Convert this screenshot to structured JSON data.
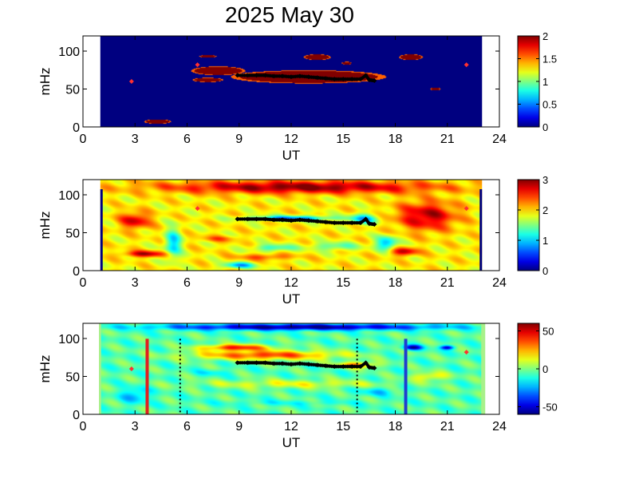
{
  "figure": {
    "title": "2025 May 30"
  },
  "chart_data": [
    {
      "type": "heatmap",
      "panel": "top",
      "xlabel": "UT",
      "ylabel": "mHz",
      "xlim": [
        0,
        24
      ],
      "ylim": [
        0,
        120
      ],
      "xticks": [
        "0",
        "3",
        "6",
        "9",
        "12",
        "15",
        "18",
        "21",
        "24"
      ],
      "yticks": [
        "0",
        "50",
        "100"
      ],
      "colorbar": {
        "range": [
          0,
          2
        ],
        "ticks": [
          "0",
          "0.5",
          "1",
          "1.5",
          "2"
        ]
      },
      "data_extent_ut": [
        1.0,
        23.0
      ],
      "background_value": 0,
      "blobs": [
        {
          "x": 13.0,
          "y": 66,
          "rx": 4.6,
          "ry": 9,
          "value": 2
        },
        {
          "x": 7.8,
          "y": 74,
          "rx": 1.6,
          "ry": 6,
          "value": 2
        },
        {
          "x": 7.2,
          "y": 62,
          "rx": 0.9,
          "ry": 3,
          "value": 2
        },
        {
          "x": 18.9,
          "y": 92,
          "rx": 0.7,
          "ry": 4,
          "value": 2
        },
        {
          "x": 13.5,
          "y": 92,
          "rx": 0.8,
          "ry": 4,
          "value": 2
        },
        {
          "x": 4.3,
          "y": 7,
          "rx": 0.8,
          "ry": 3,
          "value": 2
        },
        {
          "x": 20.3,
          "y": 50,
          "rx": 0.3,
          "ry": 2,
          "value": 2
        },
        {
          "x": 7.2,
          "y": 93,
          "rx": 0.5,
          "ry": 2,
          "value": 2
        },
        {
          "x": 15.2,
          "y": 84,
          "rx": 0.3,
          "ry": 2,
          "value": 2
        }
      ],
      "markers": [
        {
          "x": 6.6,
          "y": 82,
          "color": "#ff3030"
        },
        {
          "x": 2.8,
          "y": 60,
          "color": "#ff3030"
        },
        {
          "x": 22.1,
          "y": 82,
          "color": "#ff3030"
        }
      ],
      "ridge": {
        "x": [
          8.9,
          9.5,
          10.0,
          10.5,
          11.0,
          11.5,
          12.0,
          12.5,
          13.0,
          13.5,
          14.0,
          14.5,
          15.0,
          15.5,
          16.0,
          16.3,
          16.5,
          16.8
        ],
        "y": [
          68,
          68,
          68,
          68,
          67,
          67,
          66,
          67,
          66,
          65,
          64,
          63,
          63,
          63,
          63,
          68,
          62,
          61
        ]
      }
    },
    {
      "type": "heatmap",
      "panel": "middle",
      "xlabel": "UT",
      "ylabel": "mHz",
      "xlim": [
        0,
        24
      ],
      "ylim": [
        0,
        120
      ],
      "xticks": [
        "0",
        "3",
        "6",
        "9",
        "12",
        "15",
        "18",
        "21",
        "24"
      ],
      "yticks": [
        "0",
        "50",
        "100"
      ],
      "colorbar": {
        "range": [
          0,
          3
        ],
        "ticks": [
          "0",
          "1",
          "2",
          "3"
        ]
      },
      "data_extent_ut": [
        1.0,
        23.0
      ],
      "background_value": 1.9,
      "blobs": [
        {
          "x": 12.5,
          "y": 110,
          "rx": 11.5,
          "ry": 12,
          "value": 3
        },
        {
          "x": 19.8,
          "y": 72,
          "rx": 2.5,
          "ry": 28,
          "value": 2.85
        },
        {
          "x": 3.0,
          "y": 66,
          "rx": 1.3,
          "ry": 16,
          "value": 2.75
        },
        {
          "x": 3.6,
          "y": 22,
          "rx": 1.8,
          "ry": 6,
          "value": 2.85
        },
        {
          "x": 12.0,
          "y": 69,
          "rx": 3.6,
          "ry": 5,
          "value": 0.75
        },
        {
          "x": 16.2,
          "y": 68,
          "rx": 1.2,
          "ry": 10,
          "value": 0.95
        },
        {
          "x": 17.5,
          "y": 36,
          "rx": 0.9,
          "ry": 14,
          "value": 0.9
        },
        {
          "x": 5.2,
          "y": 35,
          "rx": 0.7,
          "ry": 30,
          "value": 1.0
        },
        {
          "x": 9.0,
          "y": 7,
          "rx": 1.4,
          "ry": 6,
          "value": 0.9
        },
        {
          "x": 11.0,
          "y": 30,
          "rx": 1.8,
          "ry": 7,
          "value": 1.25
        },
        {
          "x": 14.5,
          "y": 32,
          "rx": 2.0,
          "ry": 8,
          "value": 1.35
        },
        {
          "x": 18.5,
          "y": 25,
          "rx": 1.2,
          "ry": 8,
          "value": 2.8
        },
        {
          "x": 10.5,
          "y": 18,
          "rx": 2.4,
          "ry": 6,
          "value": 2.4
        },
        {
          "x": 7.8,
          "y": 42,
          "rx": 1.6,
          "ry": 6,
          "value": 2.3
        }
      ],
      "markers": [
        {
          "x": 6.6,
          "y": 82,
          "color": "#ff3030"
        },
        {
          "x": 22.1,
          "y": 82,
          "color": "#ff3030"
        }
      ],
      "ridge": {
        "x": [
          8.9,
          9.5,
          10.0,
          10.5,
          11.0,
          11.5,
          12.0,
          12.5,
          13.0,
          13.5,
          14.0,
          14.5,
          15.0,
          15.5,
          16.0,
          16.3,
          16.5,
          16.8
        ],
        "y": [
          68,
          68,
          68,
          68,
          67,
          67,
          66,
          67,
          66,
          65,
          64,
          63,
          63,
          63,
          63,
          68,
          62,
          61
        ]
      }
    },
    {
      "type": "heatmap",
      "panel": "bottom",
      "xlabel": "UT",
      "ylabel": "mHz",
      "xlim": [
        0,
        24
      ],
      "ylim": [
        0,
        120
      ],
      "xticks": [
        "0",
        "3",
        "6",
        "9",
        "12",
        "15",
        "18",
        "21",
        "24"
      ],
      "yticks": [
        "0",
        "50",
        "100"
      ],
      "colorbar": {
        "range": [
          -60,
          60
        ],
        "ticks": [
          "-50",
          "0",
          "50"
        ]
      },
      "data_extent_ut": [
        1.0,
        23.0
      ],
      "background_value": -5,
      "blobs": [
        {
          "x": 12.5,
          "y": 115,
          "rx": 11.5,
          "ry": 6,
          "value": -60
        },
        {
          "x": 10.5,
          "y": 78,
          "rx": 6.0,
          "ry": 9,
          "value": 38
        },
        {
          "x": 8.8,
          "y": 88,
          "rx": 2.8,
          "ry": 6,
          "value": 42
        },
        {
          "x": 15.8,
          "y": 65,
          "rx": 1.6,
          "ry": 6,
          "value": 32
        },
        {
          "x": 19.0,
          "y": 88,
          "rx": 0.8,
          "ry": 5,
          "value": -55
        },
        {
          "x": 21.0,
          "y": 88,
          "rx": 0.6,
          "ry": 4,
          "value": -50
        },
        {
          "x": 12.0,
          "y": 40,
          "rx": 8.0,
          "ry": 8,
          "value": 12
        },
        {
          "x": 3.0,
          "y": 25,
          "rx": 1.2,
          "ry": 15,
          "value": -25
        },
        {
          "x": 7.5,
          "y": 55,
          "rx": 1.5,
          "ry": 6,
          "value": -15
        },
        {
          "x": 17.0,
          "y": 30,
          "rx": 1.5,
          "ry": 8,
          "value": -20
        },
        {
          "x": 20.0,
          "y": 50,
          "rx": 1.5,
          "ry": 8,
          "value": 18
        },
        {
          "x": 12.0,
          "y": 15,
          "rx": 6.0,
          "ry": 5,
          "value": -12
        }
      ],
      "markers": [
        {
          "x": 2.8,
          "y": 60,
          "color": "#ff3030"
        },
        {
          "x": 22.1,
          "y": 82,
          "color": "#ff3030"
        }
      ],
      "ridge": {
        "x": [
          8.9,
          9.5,
          10.0,
          10.5,
          11.0,
          11.5,
          12.0,
          12.5,
          13.0,
          13.5,
          14.0,
          14.5,
          15.0,
          15.5,
          16.0,
          16.3,
          16.5,
          16.8
        ],
        "y": [
          68,
          68,
          68,
          68,
          67,
          67,
          66,
          67,
          66,
          65,
          64,
          63,
          63,
          63,
          63,
          68,
          62,
          61
        ]
      },
      "vertical_lines": [
        {
          "x": 3.7,
          "style": "solid",
          "color": "#e02020"
        },
        {
          "x": 5.6,
          "style": "dotted",
          "color": "#000000"
        },
        {
          "x": 15.8,
          "style": "dotted",
          "color": "#000000"
        },
        {
          "x": 18.6,
          "style": "solid",
          "color": "#1f3fd0"
        }
      ]
    }
  ]
}
